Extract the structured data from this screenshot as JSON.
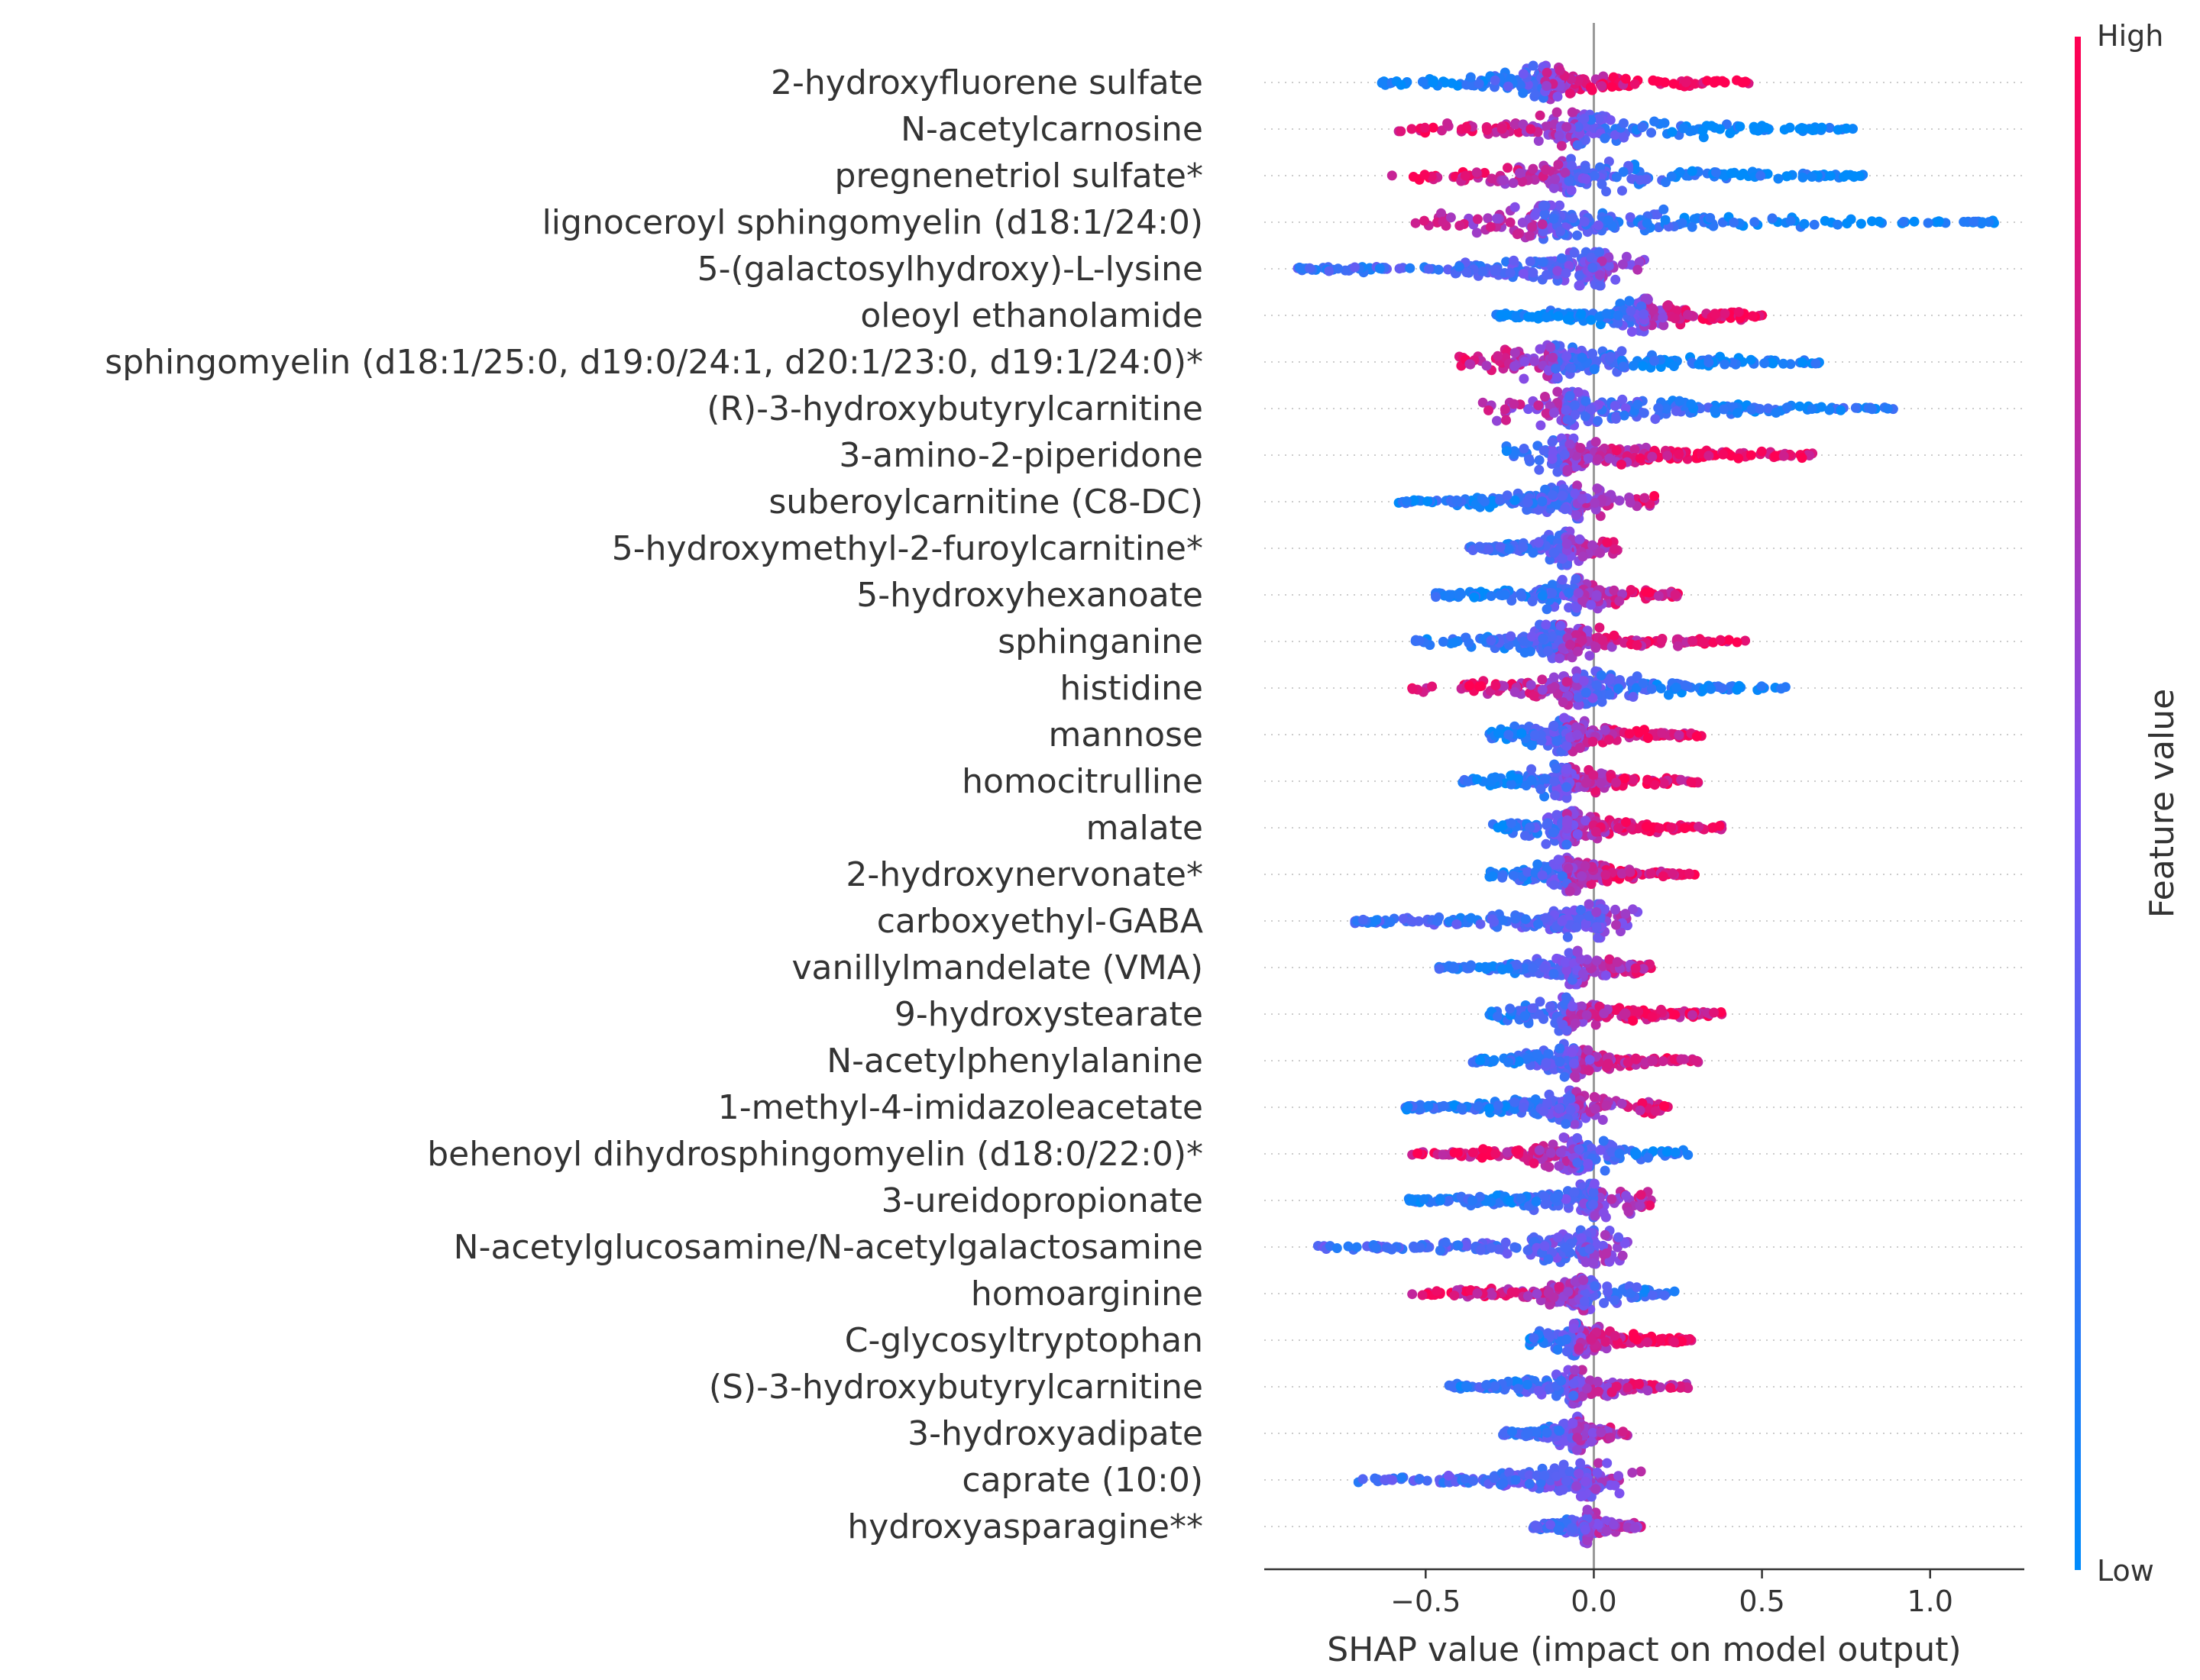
{
  "chart_data": {
    "type": "scatter",
    "subtype": "shap-beeswarm-summary",
    "title": "",
    "xlabel": "SHAP value (impact on model output)",
    "ylabel": "",
    "xlim": [
      -0.98,
      1.28
    ],
    "xticks": [
      {
        "value": -0.5,
        "label": "−0.5"
      },
      {
        "value": 0.0,
        "label": "0.0"
      },
      {
        "value": 0.5,
        "label": "0.5"
      },
      {
        "value": 1.0,
        "label": "1.0"
      }
    ],
    "colorbar": {
      "title": "Feature value",
      "high_label": "High",
      "low_label": "Low",
      "high_color": "#ff0052",
      "low_color": "#008bfb"
    },
    "features": [
      {
        "name": "2-hydroxyfluorene sulfate",
        "min": -0.63,
        "max": 0.46,
        "center": -0.15,
        "trend": 1.0
      },
      {
        "name": "N-acetylcarnosine",
        "min": -0.58,
        "max": 0.77,
        "center": -0.05,
        "trend": -0.9
      },
      {
        "name": "pregnenetriol sulfate*",
        "min": -0.6,
        "max": 0.8,
        "center": -0.08,
        "trend": -0.9
      },
      {
        "name": "lignoceroyl sphingomyelin (d18:1/24:0)",
        "min": -0.53,
        "max": 1.19,
        "center": -0.15,
        "trend": -0.9
      },
      {
        "name": "5-(galactosylhydroxy)-L-lysine",
        "min": -0.88,
        "max": 0.15,
        "center": 0.02,
        "trend": 0.5
      },
      {
        "name": "oleoyl ethanolamide",
        "min": -0.29,
        "max": 0.5,
        "center": 0.15,
        "trend": 0.9
      },
      {
        "name": "sphingomyelin (d18:1/25:0, d19:0/24:1, d20:1/23:0, d19:1/24:0)*",
        "min": -0.4,
        "max": 0.67,
        "center": -0.12,
        "trend": -0.9
      },
      {
        "name": "(R)-3-hydroxybutyrylcarnitine",
        "min": -0.33,
        "max": 0.89,
        "center": -0.08,
        "trend": -0.7
      },
      {
        "name": "3-amino-2-piperidone",
        "min": -0.26,
        "max": 0.65,
        "center": -0.08,
        "trend": 0.9
      },
      {
        "name": "suberoylcarnitine (C8-DC)",
        "min": -0.58,
        "max": 0.18,
        "center": -0.05,
        "trend": 0.8
      },
      {
        "name": "5-hydroxymethyl-2-furoylcarnitine*",
        "min": -0.37,
        "max": 0.07,
        "center": -0.08,
        "trend": 0.6
      },
      {
        "name": "5-hydroxyhexanoate",
        "min": -0.47,
        "max": 0.25,
        "center": -0.05,
        "trend": 0.8
      },
      {
        "name": "sphinganine",
        "min": -0.53,
        "max": 0.45,
        "center": -0.1,
        "trend": 0.8
      },
      {
        "name": "histidine",
        "min": -0.54,
        "max": 0.57,
        "center": -0.05,
        "trend": -0.8
      },
      {
        "name": "mannose",
        "min": -0.31,
        "max": 0.32,
        "center": -0.08,
        "trend": 0.8
      },
      {
        "name": "homocitrulline",
        "min": -0.39,
        "max": 0.31,
        "center": -0.08,
        "trend": 0.8
      },
      {
        "name": "malate",
        "min": -0.3,
        "max": 0.38,
        "center": -0.08,
        "trend": 0.85
      },
      {
        "name": "2-hydroxynervonate*",
        "min": -0.31,
        "max": 0.3,
        "center": -0.08,
        "trend": 0.8
      },
      {
        "name": "carboxyethyl-GABA",
        "min": -0.71,
        "max": 0.13,
        "center": 0.02,
        "trend": 0.5
      },
      {
        "name": "vanillylmandelate (VMA)",
        "min": -0.46,
        "max": 0.17,
        "center": -0.05,
        "trend": 0.6
      },
      {
        "name": "9-hydroxystearate",
        "min": -0.31,
        "max": 0.38,
        "center": -0.08,
        "trend": 0.8
      },
      {
        "name": "N-acetylphenylalanine",
        "min": -0.36,
        "max": 0.31,
        "center": -0.06,
        "trend": 0.7
      },
      {
        "name": "1-methyl-4-imidazoleacetate",
        "min": -0.56,
        "max": 0.22,
        "center": -0.06,
        "trend": 0.7
      },
      {
        "name": "behenoyl dihydrosphingomyelin (d18:0/22:0)*",
        "min": -0.54,
        "max": 0.28,
        "center": -0.05,
        "trend": -0.8
      },
      {
        "name": "3-ureidopropionate",
        "min": -0.55,
        "max": 0.17,
        "center": 0.0,
        "trend": 0.7
      },
      {
        "name": "N-acetylglucosamine/N-acetylgalactosamine",
        "min": -0.82,
        "max": 0.1,
        "center": 0.0,
        "trend": 0.4
      },
      {
        "name": "homoarginine",
        "min": -0.54,
        "max": 0.24,
        "center": -0.03,
        "trend": -0.7
      },
      {
        "name": "C-glycosyltryptophan",
        "min": -0.19,
        "max": 0.29,
        "center": -0.05,
        "trend": 0.9
      },
      {
        "name": "(S)-3-hydroxybutyrylcarnitine",
        "min": -0.43,
        "max": 0.28,
        "center": -0.06,
        "trend": 0.6
      },
      {
        "name": "3-hydroxyadipate",
        "min": -0.27,
        "max": 0.1,
        "center": -0.05,
        "trend": 0.5
      },
      {
        "name": "caprate (10:0)",
        "min": -0.7,
        "max": 0.14,
        "center": -0.02,
        "trend": 0.4
      },
      {
        "name": "hydroxyasparagine**",
        "min": -0.18,
        "max": 0.14,
        "center": -0.02,
        "trend": 0.4
      }
    ]
  }
}
